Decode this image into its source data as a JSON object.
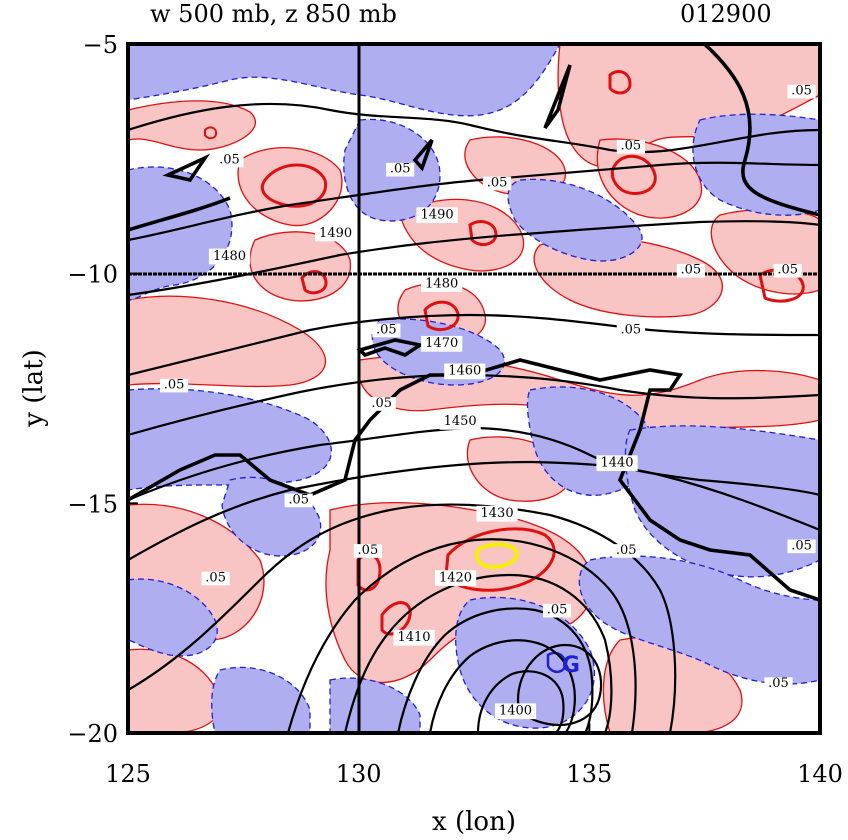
{
  "header": {
    "title_left": "w 500 mb, z 850 mb",
    "title_right": "012900"
  },
  "chart_data": {
    "type": "contour",
    "xlabel": "x (lon)",
    "ylabel": "y (lat)",
    "xlim": [
      125,
      140
    ],
    "ylim": [
      -20,
      -5
    ],
    "xticks": [
      125,
      130,
      135,
      140
    ],
    "yticks": [
      -5,
      -10,
      -15,
      -20
    ],
    "xtick_labels": [
      "125",
      "130",
      "135",
      "140"
    ],
    "ytick_labels": [
      "−5",
      "−10",
      "−15",
      "−20"
    ],
    "reference_lines": {
      "x": 130,
      "y": -10
    },
    "colors": {
      "positive_fill": "#f8c4c4",
      "negative_fill": "#aeaef0",
      "positive_line": "#e01010",
      "negative_line": "#2020d0",
      "height_contour": "#000000",
      "max_w": "#f5f000"
    },
    "height_contours": {
      "levels": [
        1400,
        1410,
        1420,
        1430,
        1440,
        1450,
        1460,
        1470,
        1480,
        1490
      ],
      "low_center": [
        134.3,
        -18.5
      ],
      "labels": [
        {
          "text": "1490",
          "lon": 131.7,
          "lat": -8.8
        },
        {
          "text": "1480",
          "lon": 131.8,
          "lat": -10.3
        },
        {
          "text": "1470",
          "lon": 131.8,
          "lat": -11.6
        },
        {
          "text": "1460",
          "lon": 132.3,
          "lat": -12.2
        },
        {
          "text": "1450",
          "lon": 132.2,
          "lat": -13.3
        },
        {
          "text": "1440",
          "lon": 135.6,
          "lat": -14.2
        },
        {
          "text": "1430",
          "lon": 133.0,
          "lat": -15.3
        },
        {
          "text": "1420",
          "lon": 132.1,
          "lat": -16.7
        },
        {
          "text": "1410",
          "lon": 131.2,
          "lat": -18.0
        },
        {
          "text": "1400",
          "lon": 133.4,
          "lat": -19.6
        },
        {
          "text": "1490",
          "lon": 129.5,
          "lat": -9.2
        },
        {
          "text": "1480",
          "lon": 127.2,
          "lat": -9.7
        }
      ]
    },
    "w_contours": {
      "levels": [
        -0.05,
        0.05
      ],
      "labels": [
        {
          "text": ".05",
          "lon": 127.2,
          "lat": -7.6
        },
        {
          "text": ".05",
          "lon": 130.9,
          "lat": -7.8
        },
        {
          "text": ".05",
          "lon": 133.0,
          "lat": -8.1
        },
        {
          "text": ".05",
          "lon": 135.9,
          "lat": -7.3
        },
        {
          "text": ".05",
          "lon": 139.6,
          "lat": -6.1
        },
        {
          "text": ".05",
          "lon": 137.2,
          "lat": -10.0
        },
        {
          "text": ".05",
          "lon": 139.3,
          "lat": -10.0
        },
        {
          "text": ".05",
          "lon": 135.9,
          "lat": -11.3
        },
        {
          "text": ".05",
          "lon": 130.6,
          "lat": -11.3
        },
        {
          "text": ".05",
          "lon": 126.0,
          "lat": -12.5
        },
        {
          "text": ".05",
          "lon": 130.5,
          "lat": -12.9
        },
        {
          "text": ".05",
          "lon": 128.7,
          "lat": -15.0
        },
        {
          "text": ".05",
          "lon": 130.2,
          "lat": -16.1
        },
        {
          "text": ".05",
          "lon": 126.9,
          "lat": -16.7
        },
        {
          "text": ".05",
          "lon": 135.8,
          "lat": -16.1
        },
        {
          "text": ".05",
          "lon": 139.6,
          "lat": -16.0
        },
        {
          "text": ".05",
          "lon": 134.3,
          "lat": -17.4
        },
        {
          "text": ".05",
          "lon": 139.1,
          "lat": -19.0
        }
      ],
      "min_marker": {
        "text": "G",
        "lon": 134.6,
        "lat": -18.5
      }
    }
  }
}
